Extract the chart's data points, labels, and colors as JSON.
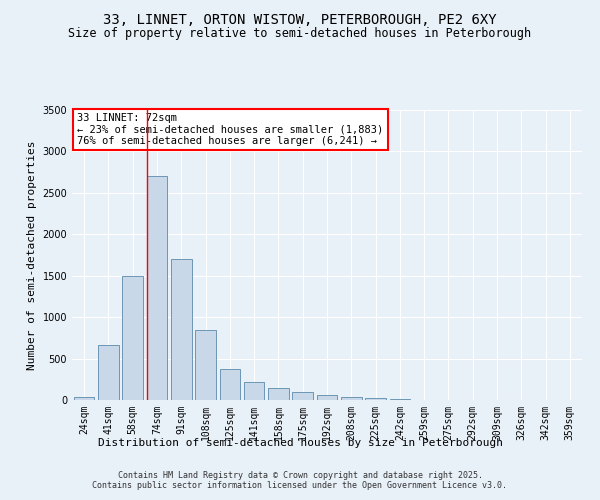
{
  "title": "33, LINNET, ORTON WISTOW, PETERBOROUGH, PE2 6XY",
  "subtitle": "Size of property relative to semi-detached houses in Peterborough",
  "xlabel": "Distribution of semi-detached houses by size in Peterborough",
  "ylabel": "Number of semi-detached properties",
  "categories": [
    "24sqm",
    "41sqm",
    "58sqm",
    "74sqm",
    "91sqm",
    "108sqm",
    "125sqm",
    "141sqm",
    "158sqm",
    "175sqm",
    "192sqm",
    "208sqm",
    "225sqm",
    "242sqm",
    "259sqm",
    "275sqm",
    "292sqm",
    "309sqm",
    "326sqm",
    "342sqm",
    "359sqm"
  ],
  "values": [
    40,
    660,
    1500,
    2700,
    1700,
    850,
    370,
    215,
    150,
    95,
    55,
    35,
    20,
    10,
    5,
    3,
    2,
    1,
    0,
    0,
    0
  ],
  "bar_color": "#c8d8e8",
  "bar_edge_color": "#5a8aaa",
  "background_color": "#e8f0f8",
  "grid_color": "#ffffff",
  "vline_bin_index": 3,
  "vline_color": "red",
  "annotation_title": "33 LINNET: 72sqm",
  "annotation_line1": "← 23% of semi-detached houses are smaller (1,883)",
  "annotation_line2": "76% of semi-detached houses are larger (6,241) →",
  "annotation_box_color": "white",
  "annotation_box_edge": "red",
  "ylim": [
    0,
    3500
  ],
  "footer": "Contains HM Land Registry data © Crown copyright and database right 2025.\nContains public sector information licensed under the Open Government Licence v3.0.",
  "title_fontsize": 10,
  "subtitle_fontsize": 8.5,
  "ylabel_fontsize": 8,
  "xlabel_fontsize": 8,
  "tick_fontsize": 7,
  "annotation_fontsize": 7.5,
  "footer_fontsize": 6
}
